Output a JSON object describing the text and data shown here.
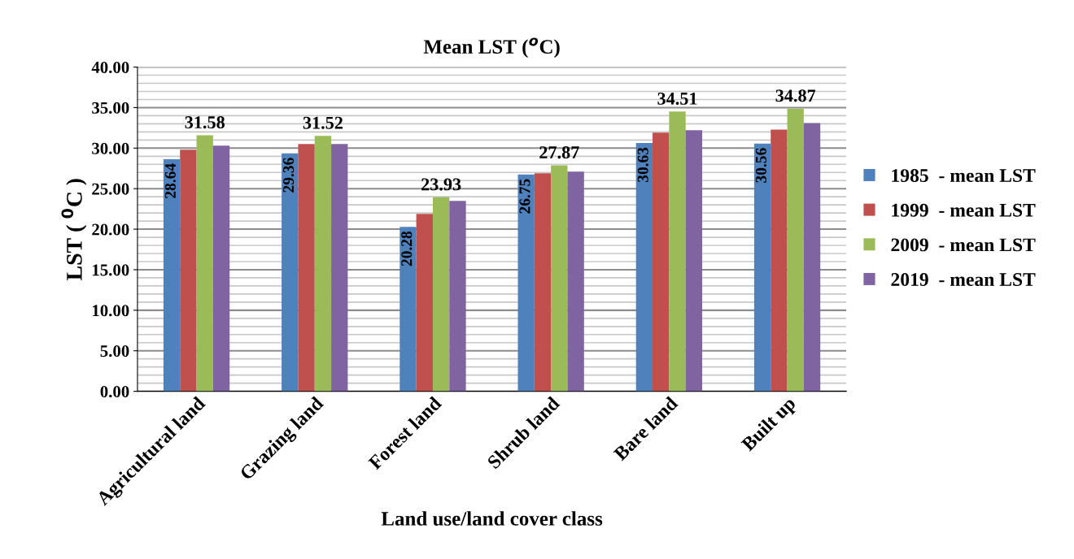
{
  "chart_data": {
    "type": "bar",
    "title": "Mean LST ($^{o}$C)",
    "xlabel": "Land use/land cover class",
    "ylabel": "LST ( $^{0}$C )",
    "categories": [
      "Agricultural land",
      "Grazing land",
      "Forest land",
      "Shrub land",
      "Bare land",
      "Built up"
    ],
    "series": [
      {
        "name": "1985  - mean LST",
        "color": "#4f81bd",
        "values": [
          28.64,
          29.36,
          20.28,
          26.75,
          30.63,
          30.56
        ],
        "value_labels": [
          "28.64",
          "29.36",
          "20.28",
          "26.75",
          "30.63",
          "30.56"
        ]
      },
      {
        "name": "1999  - mean LST",
        "color": "#c0504d",
        "values": [
          29.8,
          30.5,
          21.9,
          26.9,
          31.9,
          32.3
        ]
      },
      {
        "name": "2009  - mean LST",
        "color": "#9bbb59",
        "values": [
          31.58,
          31.52,
          23.93,
          27.87,
          34.51,
          34.87
        ],
        "value_labels": [
          "31.58",
          "31.52",
          "23.93",
          "27.87",
          "34.51",
          "34.87"
        ]
      },
      {
        "name": "2019  - mean LST",
        "color": "#8064a2",
        "values": [
          30.3,
          30.5,
          23.5,
          27.1,
          32.2,
          33.1
        ]
      }
    ],
    "ylim": [
      0,
      40
    ],
    "yticks": [
      {
        "value": 0,
        "label": "0.00"
      },
      {
        "value": 5,
        "label": "5.00"
      },
      {
        "value": 10,
        "label": "10.00"
      },
      {
        "value": 15,
        "label": "15.00"
      },
      {
        "value": 20,
        "label": "20.00"
      },
      {
        "value": 25,
        "label": "25.00"
      },
      {
        "value": 30,
        "label": "30.00"
      },
      {
        "value": 35,
        "label": "35.00"
      },
      {
        "value": 40,
        "label": "40.00"
      }
    ],
    "grid": "y",
    "legend": "right"
  }
}
